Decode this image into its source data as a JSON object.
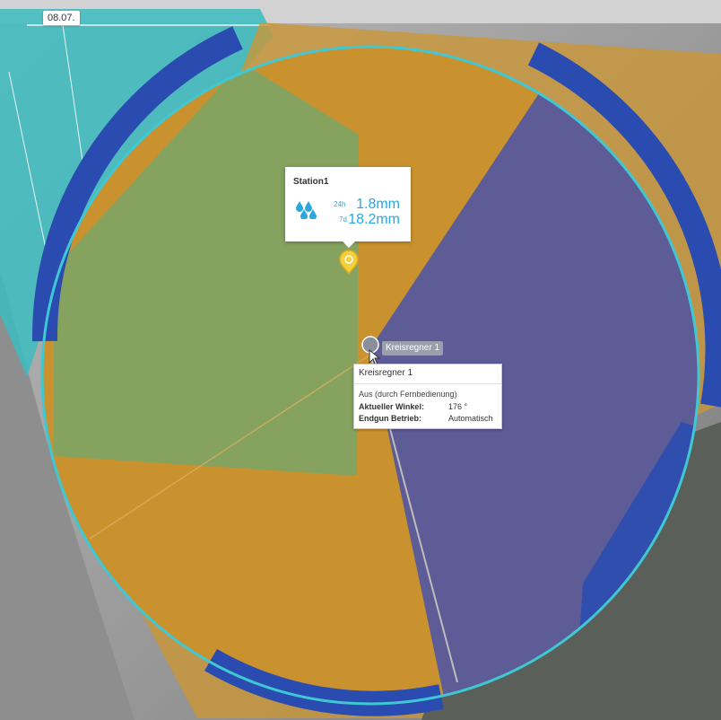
{
  "map": {
    "date_label": "08.07."
  },
  "station": {
    "name": "Station1",
    "label_24h": "24h",
    "value_24h": "1.8mm",
    "label_7d": "7d",
    "value_7d": "18.2mm",
    "icon": "rain-drops-icon",
    "icon_color": "#29a8df"
  },
  "pivot": {
    "badge_label": "Kreisregner 1",
    "popup_title": "Kreisregner 1",
    "status": "Aus (durch Fernbedienung)",
    "angle_label": "Aktueller Winkel:",
    "angle_value": "176 °",
    "endgun_label": "Endgun Betrieb:",
    "endgun_value": "Automatisch"
  },
  "colors": {
    "segment_green": "#85a35f",
    "segment_orange": "#cc9634",
    "segment_purple": "#5d5c97",
    "endgun_blue": "#2a4cb0",
    "circle_outline": "#3fc8d4",
    "field_cyan": "#3cbcc0"
  }
}
